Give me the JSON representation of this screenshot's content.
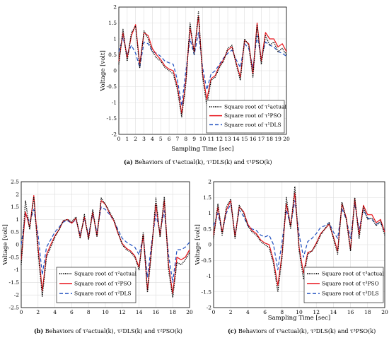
{
  "captions": [
    {
      "tag": "(a)",
      "pre": "Behaviors of ",
      "body": "τ¹actual(k), τ¹DLS(k) and τ¹PSO(k)"
    },
    {
      "tag": "(b)",
      "pre": "Behaviors of ",
      "body": "τ²actual(k), τ²DLS(k) and τ²PSO(k)"
    },
    {
      "tag": "(c)",
      "pre": "Behaviors of ",
      "body": "τ³actual(k), τ³DLS(k) and τ³PSO(k)"
    }
  ],
  "colors": {
    "actual": "#000000",
    "pso": "#e8141b",
    "dls": "#1f4fbf"
  },
  "chart_data": [
    {
      "type": "line",
      "xlabel": "Sampling Time [sec]",
      "ylabel": "Voltage [volt]",
      "xlim": [
        0,
        20
      ],
      "ylim": [
        -2,
        2
      ],
      "xticks": [
        0,
        1,
        2,
        3,
        4,
        5,
        6,
        7,
        8,
        9,
        10,
        11,
        12,
        13,
        14,
        15,
        16,
        17,
        18,
        19,
        20
      ],
      "yticks": [
        -2,
        -1.5,
        -1,
        -0.5,
        0,
        0.5,
        1,
        1.5,
        2
      ],
      "grid": true,
      "legend": "bottom-right",
      "series": [
        {
          "name": "Square root of τ¹actual",
          "style": "dotted",
          "x": [
            0,
            0.5,
            1,
            1.5,
            2,
            2.5,
            3,
            3.5,
            4,
            4.5,
            5,
            5.5,
            6,
            6.5,
            7,
            7.5,
            8,
            8.5,
            9,
            9.5,
            10,
            10.5,
            11,
            11.5,
            12,
            12.5,
            13,
            13.5,
            14,
            14.5,
            15,
            15.5,
            16,
            16.5,
            17,
            17.5,
            18,
            18.5,
            19,
            19.5,
            20
          ],
          "y": [
            0.2,
            1.3,
            0.3,
            1.2,
            1.4,
            0.1,
            1.25,
            1.0,
            0.6,
            0.4,
            0.3,
            0.1,
            0.0,
            -0.1,
            -0.6,
            -1.45,
            -0.4,
            1.5,
            0.5,
            1.85,
            -0.2,
            -1.1,
            -0.3,
            -0.2,
            0.1,
            0.3,
            0.7,
            0.8,
            0.2,
            -0.3,
            1.0,
            0.8,
            -0.2,
            1.45,
            0.2,
            1.1,
            0.8,
            0.9,
            0.6,
            0.7,
            0.5
          ]
        },
        {
          "name": "Square root of τ¹PSO",
          "style": "solid",
          "x": [
            0,
            0.5,
            1,
            1.5,
            2,
            2.5,
            3,
            3.5,
            4,
            4.5,
            5,
            5.5,
            6,
            6.5,
            7,
            7.5,
            8,
            8.5,
            9,
            9.5,
            10,
            10.5,
            11,
            11.5,
            12,
            12.5,
            13,
            13.5,
            14,
            14.5,
            15,
            15.5,
            16,
            16.5,
            17,
            17.5,
            18,
            18.5,
            19,
            19.5,
            20
          ],
          "y": [
            0.3,
            1.2,
            0.4,
            1.1,
            1.45,
            0.2,
            1.2,
            1.1,
            0.7,
            0.5,
            0.35,
            0.15,
            0.05,
            0.0,
            -0.5,
            -1.35,
            -0.3,
            1.35,
            0.6,
            1.7,
            -0.1,
            -0.9,
            -0.25,
            -0.15,
            0.15,
            0.35,
            0.65,
            0.75,
            0.25,
            -0.2,
            0.95,
            0.85,
            -0.1,
            1.5,
            0.3,
            1.2,
            1.0,
            1.0,
            0.75,
            0.85,
            0.6
          ]
        },
        {
          "name": "Square root of τ¹DLS",
          "style": "dashed",
          "x": [
            0,
            0.5,
            1,
            1.5,
            2,
            2.5,
            3,
            3.5,
            4,
            4.5,
            5,
            5.5,
            6,
            6.5,
            7,
            7.5,
            8,
            8.5,
            9,
            9.5,
            10,
            10.5,
            11,
            11.5,
            12,
            12.5,
            13,
            13.5,
            14,
            14.5,
            15,
            15.5,
            16,
            16.5,
            17,
            17.5,
            18,
            18.5,
            19,
            19.5,
            20
          ],
          "y": [
            0.6,
            1.05,
            0.5,
            0.8,
            0.55,
            0.1,
            0.9,
            0.85,
            0.6,
            0.55,
            0.45,
            0.3,
            0.25,
            0.2,
            -0.3,
            -1.1,
            0.0,
            1.0,
            0.5,
            1.2,
            0.1,
            -0.6,
            -0.1,
            0.0,
            0.2,
            0.4,
            0.55,
            0.65,
            0.35,
            0.1,
            0.85,
            0.7,
            0.1,
            1.1,
            0.4,
            0.9,
            0.8,
            0.75,
            0.6,
            0.55,
            0.45
          ]
        }
      ]
    },
    {
      "type": "line",
      "xlabel": "",
      "ylabel": "Voltage [volt]",
      "xlim": [
        0,
        20
      ],
      "ylim": [
        -2.5,
        2.5
      ],
      "xticks": [
        0,
        2,
        4,
        6,
        8,
        10,
        12,
        14,
        16,
        18,
        20
      ],
      "yticks": [
        -2.5,
        -2,
        -1.5,
        -1,
        -0.5,
        0,
        0.5,
        1,
        1.5,
        2,
        2.5
      ],
      "grid": true,
      "legend": "bottom-right",
      "series": [
        {
          "name": "Square root of τ²actual",
          "style": "dotted",
          "x": [
            0,
            0.5,
            1,
            1.5,
            2,
            2.5,
            3,
            3.5,
            4,
            4.5,
            5,
            5.5,
            6,
            6.5,
            7,
            7.5,
            8,
            8.5,
            9,
            9.5,
            10,
            10.5,
            11,
            11.5,
            12,
            12.5,
            13,
            13.5,
            14,
            14.5,
            15,
            15.5,
            16,
            16.5,
            17,
            17.5,
            18,
            18.5,
            19,
            19.5,
            20
          ],
          "y": [
            -0.8,
            1.75,
            0.6,
            1.9,
            -0.3,
            -2.05,
            -0.5,
            -0.1,
            0.3,
            0.6,
            0.95,
            1.0,
            0.9,
            1.1,
            0.25,
            1.2,
            0.2,
            1.4,
            0.3,
            1.85,
            1.6,
            1.3,
            1.0,
            0.5,
            0.0,
            -0.2,
            -0.3,
            -0.5,
            -1.0,
            0.5,
            -1.9,
            -0.2,
            1.85,
            0.3,
            1.9,
            -1.0,
            -2.1,
            -0.7,
            -0.8,
            -0.6,
            -0.3
          ]
        },
        {
          "name": "Square root of τ²PSO",
          "style": "solid",
          "x": [
            0,
            0.5,
            1,
            1.5,
            2,
            2.5,
            3,
            3.5,
            4,
            4.5,
            5,
            5.5,
            6,
            6.5,
            7,
            7.5,
            8,
            8.5,
            9,
            9.5,
            10,
            10.5,
            11,
            11.5,
            12,
            12.5,
            13,
            13.5,
            14,
            14.5,
            15,
            15.5,
            16,
            16.5,
            17,
            17.5,
            18,
            18.5,
            19,
            19.5,
            20
          ],
          "y": [
            -0.6,
            1.3,
            0.7,
            1.95,
            -0.1,
            -1.85,
            -0.4,
            0.0,
            0.35,
            0.6,
            0.95,
            1.0,
            0.85,
            1.05,
            0.3,
            1.1,
            0.25,
            1.3,
            0.35,
            1.75,
            1.6,
            1.25,
            0.95,
            0.45,
            0.05,
            -0.15,
            -0.25,
            -0.45,
            -0.9,
            0.4,
            -1.8,
            -0.1,
            1.6,
            0.35,
            1.75,
            -0.8,
            -1.95,
            -0.5,
            -0.6,
            -0.5,
            -0.2
          ]
        },
        {
          "name": "Square root of τ²DLS",
          "style": "dashed",
          "x": [
            0,
            0.5,
            1,
            1.5,
            2,
            2.5,
            3,
            3.5,
            4,
            4.5,
            5,
            5.5,
            6,
            6.5,
            7,
            7.5,
            8,
            8.5,
            9,
            9.5,
            10,
            10.5,
            11,
            11.5,
            12,
            12.5,
            13,
            13.5,
            14,
            14.5,
            15,
            15.5,
            16,
            16.5,
            17,
            17.5,
            18,
            18.5,
            19,
            19.5,
            20
          ],
          "y": [
            0.0,
            1.2,
            0.9,
            1.4,
            0.4,
            -1.2,
            -0.1,
            0.2,
            0.5,
            0.7,
            0.9,
            0.95,
            0.85,
            1.0,
            0.4,
            1.0,
            0.4,
            1.2,
            0.5,
            1.5,
            1.4,
            1.2,
            0.95,
            0.6,
            0.25,
            0.1,
            0.0,
            -0.1,
            -0.4,
            0.3,
            -1.3,
            0.1,
            1.2,
            0.5,
            1.35,
            -0.4,
            -1.5,
            -0.2,
            -0.2,
            -0.1,
            0.1
          ]
        }
      ]
    },
    {
      "type": "line",
      "xlabel": "Sampling Time [sec]",
      "ylabel": "Voltage [volt]",
      "xlim": [
        0,
        20
      ],
      "ylim": [
        -2,
        2
      ],
      "xticks": [
        0,
        2,
        4,
        6,
        8,
        10,
        12,
        14,
        16,
        18,
        20
      ],
      "yticks": [
        -2,
        -1.5,
        -1,
        -0.5,
        0,
        0.5,
        1,
        1.5,
        2
      ],
      "grid": true,
      "legend": "bottom-right",
      "series": [
        {
          "name": "Square root of τ³actual",
          "style": "dotted",
          "x": [
            0,
            0.5,
            1,
            1.5,
            2,
            2.5,
            3,
            3.5,
            4,
            4.5,
            5,
            5.5,
            6,
            6.5,
            7,
            7.5,
            8,
            8.5,
            9,
            9.5,
            10,
            10.5,
            11,
            11.5,
            12,
            12.5,
            13,
            13.5,
            14,
            14.5,
            15,
            15.5,
            16,
            16.5,
            17,
            17.5,
            18,
            18.5,
            19,
            19.5,
            20
          ],
          "y": [
            0.2,
            1.3,
            0.3,
            1.2,
            1.45,
            0.2,
            1.25,
            1.0,
            0.6,
            0.4,
            0.3,
            0.1,
            0.0,
            -0.1,
            -0.6,
            -1.5,
            -0.4,
            1.5,
            0.5,
            1.85,
            -0.2,
            -1.1,
            -0.3,
            -0.2,
            0.0,
            0.3,
            0.5,
            0.7,
            0.2,
            -0.3,
            1.35,
            0.8,
            -0.2,
            1.5,
            0.2,
            1.2,
            0.8,
            0.85,
            0.6,
            0.75,
            0.3
          ]
        },
        {
          "name": "Square root of τ³PSO",
          "style": "solid",
          "x": [
            0,
            0.5,
            1,
            1.5,
            2,
            2.5,
            3,
            3.5,
            4,
            4.5,
            5,
            5.5,
            6,
            6.5,
            7,
            7.5,
            8,
            8.5,
            9,
            9.5,
            10,
            10.5,
            11,
            11.5,
            12,
            12.5,
            13,
            13.5,
            14,
            14.5,
            15,
            15.5,
            16,
            16.5,
            17,
            17.5,
            18,
            18.5,
            19,
            19.5,
            20
          ],
          "y": [
            0.3,
            1.2,
            0.4,
            1.1,
            1.4,
            0.25,
            1.2,
            1.05,
            0.65,
            0.45,
            0.35,
            0.15,
            0.05,
            0.0,
            -0.5,
            -1.3,
            -0.3,
            1.3,
            0.6,
            1.65,
            -0.1,
            -0.9,
            -0.25,
            -0.2,
            0.05,
            0.35,
            0.5,
            0.65,
            0.25,
            -0.2,
            1.3,
            0.85,
            -0.15,
            1.45,
            0.3,
            1.25,
            0.95,
            0.95,
            0.7,
            0.8,
            0.4
          ]
        },
        {
          "name": "Square root of τ³DLS",
          "style": "dashed",
          "x": [
            0,
            0.5,
            1,
            1.5,
            2,
            2.5,
            3,
            3.5,
            4,
            4.5,
            5,
            5.5,
            6,
            6.5,
            7,
            7.5,
            8,
            8.5,
            9,
            9.5,
            10,
            10.5,
            11,
            11.5,
            12,
            12.5,
            13,
            13.5,
            14,
            14.5,
            15,
            15.5,
            16,
            16.5,
            17,
            17.5,
            18,
            18.5,
            19,
            19.5,
            20
          ],
          "y": [
            0.6,
            1.0,
            0.4,
            1.0,
            1.3,
            0.3,
            1.1,
            0.9,
            0.6,
            0.5,
            0.45,
            0.3,
            0.25,
            0.3,
            0.0,
            -0.8,
            0.1,
            1.1,
            0.6,
            1.4,
            0.3,
            -0.4,
            0.1,
            0.2,
            0.35,
            0.55,
            0.6,
            0.7,
            0.4,
            0.2,
            1.15,
            0.8,
            0.2,
            1.3,
            0.5,
            1.1,
            0.85,
            0.8,
            0.65,
            0.7,
            0.45
          ]
        }
      ]
    }
  ]
}
